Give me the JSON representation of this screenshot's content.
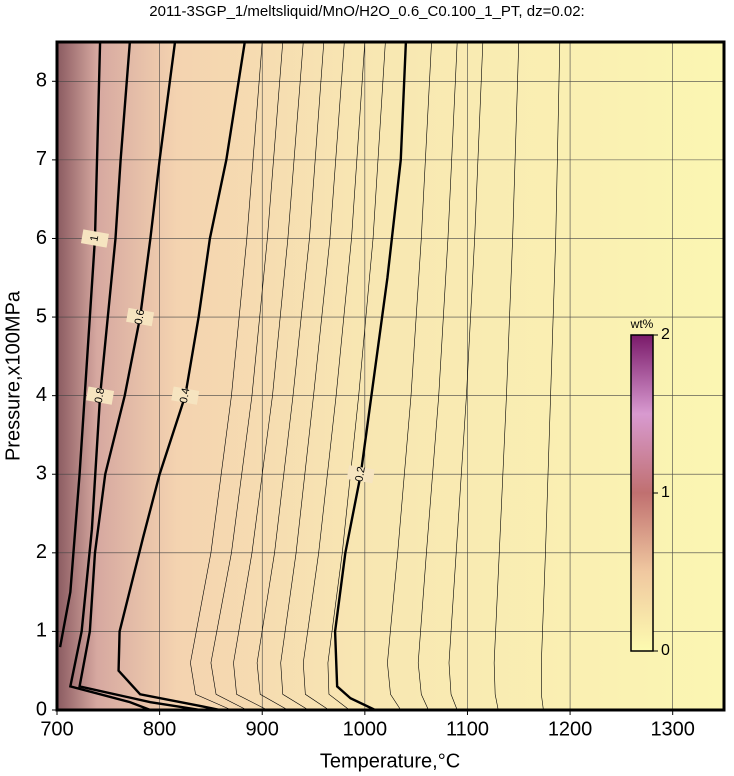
{
  "chart_data": {
    "type": "contour",
    "title": "2011-3SGP_1/meltsliquid/MnO/H2O_0.6_C0.100_1_PT, dz=0.02:",
    "xlabel": "Temperature,°C",
    "ylabel": "Pressure,x100MPa",
    "xlim": [
      700,
      1350
    ],
    "ylim": [
      0,
      8.5
    ],
    "xticks": [
      700,
      800,
      900,
      1000,
      1100,
      1200,
      1300
    ],
    "yticks": [
      0,
      1,
      2,
      3,
      4,
      5,
      6,
      7,
      8
    ],
    "grid": true,
    "series": [
      {
        "name": "0.2",
        "color": "#000000",
        "x": [
          1040,
          1035,
          1022,
          996,
          981,
          971,
          973,
          986,
          1010
        ],
        "y": [
          8.5,
          7,
          5.5,
          3,
          2,
          1,
          0.3,
          0.15,
          0
        ]
      },
      {
        "name": "0.4",
        "color": "#000000",
        "x": [
          883,
          865,
          849,
          838,
          825,
          800,
          784,
          761,
          760,
          781,
          840,
          859
        ],
        "y": [
          8.5,
          7,
          6,
          5,
          4,
          3,
          2.2,
          1,
          0.5,
          0.2,
          0.05,
          0
        ]
      },
      {
        "name": "0.6",
        "color": "#000000",
        "x": [
          815,
          800,
          791,
          781,
          766,
          747,
          737,
          732,
          722,
          791,
          840
        ],
        "y": [
          8.5,
          7,
          6,
          5,
          4,
          3,
          2,
          1,
          0.3,
          0.1,
          0
        ]
      },
      {
        "name": "0.8",
        "color": "#000000",
        "x": [
          771,
          762,
          757,
          742,
          734,
          724,
          713,
          771,
          791
        ],
        "y": [
          8.5,
          7,
          6,
          4,
          2.3,
          1,
          0.3,
          0.1,
          0
        ]
      },
      {
        "name": "1",
        "color": "#000000",
        "x": [
          742,
          739,
          737,
          727,
          722,
          713,
          703
        ],
        "y": [
          8.5,
          7,
          6,
          4,
          3,
          1.5,
          0.8
        ]
      }
    ],
    "minor_contours": [
      {
        "x": [
          900,
          885,
          870,
          850,
          830,
          835,
          870
        ],
        "y": [
          8.5,
          6,
          4,
          2,
          0.6,
          0.2,
          0
        ]
      },
      {
        "x": [
          920,
          905,
          890,
          870,
          850,
          855,
          885
        ],
        "y": [
          8.5,
          6,
          4,
          2,
          0.6,
          0.2,
          0
        ]
      },
      {
        "x": [
          940,
          925,
          910,
          890,
          872,
          875,
          905
        ],
        "y": [
          8.5,
          6,
          4,
          2,
          0.6,
          0.2,
          0
        ]
      },
      {
        "x": [
          960,
          946,
          930,
          912,
          895,
          898,
          925
        ],
        "y": [
          8.5,
          6,
          4,
          2,
          0.6,
          0.2,
          0
        ]
      },
      {
        "x": [
          980,
          966,
          950,
          933,
          918,
          920,
          945
        ],
        "y": [
          8.5,
          6,
          4,
          2,
          0.6,
          0.2,
          0
        ]
      },
      {
        "x": [
          1000,
          987,
          972,
          955,
          940,
          942,
          965
        ],
        "y": [
          8.5,
          6,
          4,
          2,
          0.6,
          0.2,
          0
        ]
      },
      {
        "x": [
          1020,
          1008,
          994,
          978,
          964,
          965,
          985
        ],
        "y": [
          8.5,
          6,
          4,
          2,
          0.6,
          0.2,
          0
        ]
      },
      {
        "x": [
          1065,
          1055,
          1045,
          1032,
          1022,
          1025,
          1035
        ],
        "y": [
          8.5,
          6,
          4,
          2,
          0.6,
          0.2,
          0
        ]
      },
      {
        "x": [
          1090,
          1081,
          1072,
          1060,
          1052,
          1055,
          1062
        ],
        "y": [
          8.5,
          6,
          4,
          2,
          0.6,
          0.2,
          0
        ]
      },
      {
        "x": [
          1115,
          1107,
          1099,
          1089,
          1082,
          1084,
          1090
        ],
        "y": [
          8.5,
          6,
          4,
          2,
          0.6,
          0.2,
          0
        ]
      },
      {
        "x": [
          1150,
          1144,
          1138,
          1131,
          1126,
          1127,
          1130
        ],
        "y": [
          8.5,
          6,
          4,
          2,
          0.6,
          0.2,
          0
        ]
      },
      {
        "x": [
          1190,
          1186,
          1181,
          1176,
          1172,
          1172,
          1174
        ],
        "y": [
          8.5,
          6,
          4,
          2,
          0.6,
          0.2,
          0
        ]
      }
    ],
    "colorbar": {
      "label": "wt%",
      "lim": [
        0,
        2
      ],
      "ticks": [
        0,
        1,
        2
      ]
    }
  }
}
